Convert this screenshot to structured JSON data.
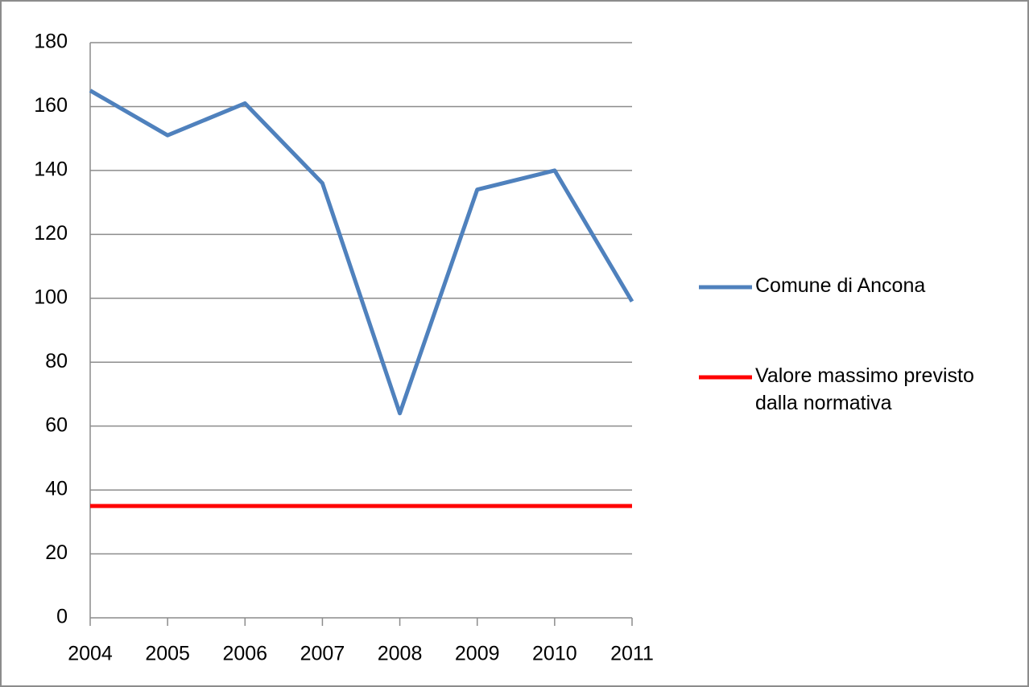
{
  "chart_data": {
    "type": "line",
    "categories": [
      "2004",
      "2005",
      "2006",
      "2007",
      "2008",
      "2009",
      "2010",
      "2011"
    ],
    "series": [
      {
        "name": "Comune di Ancona",
        "color": "#4f81bd",
        "values": [
          165,
          151,
          161,
          136,
          64,
          134,
          140,
          99
        ]
      },
      {
        "name": "Valore massimo previsto dalla normativa",
        "color": "#ff0000",
        "values": [
          35,
          35,
          35,
          35,
          35,
          35,
          35,
          35
        ]
      }
    ],
    "ylim": [
      0,
      180
    ],
    "yticks": [
      0,
      20,
      40,
      60,
      80,
      100,
      120,
      140,
      160,
      180
    ],
    "grid": true,
    "legend": "right"
  }
}
